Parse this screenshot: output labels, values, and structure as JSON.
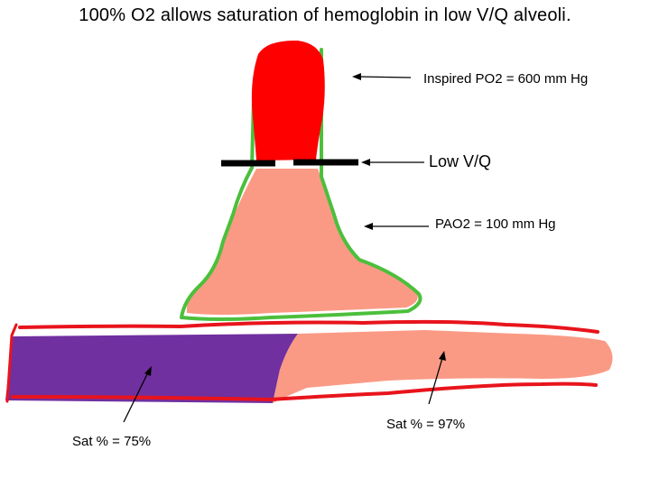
{
  "title": "100% O2 allows saturation of hemoglobin in low V/Q alveoli.",
  "labels": {
    "inspired": "Inspired PO2 = 600 mm Hg",
    "low_vq": "Low V/Q",
    "pao2": "PAO2 = 100 mm Hg",
    "sat_left": "Sat % = 75%",
    "sat_right": "Sat % = 97%"
  },
  "colors": {
    "inspired_gas": "#ff0000",
    "alveolus": "#fa9a85",
    "alveolar_wall": "#4cbf3c",
    "capillary_wall": "#e8141c",
    "deoxygenated_blood": "#7030a0",
    "oxygenated_blood": "#fa9a85",
    "airway_narrowing": "#000000"
  }
}
